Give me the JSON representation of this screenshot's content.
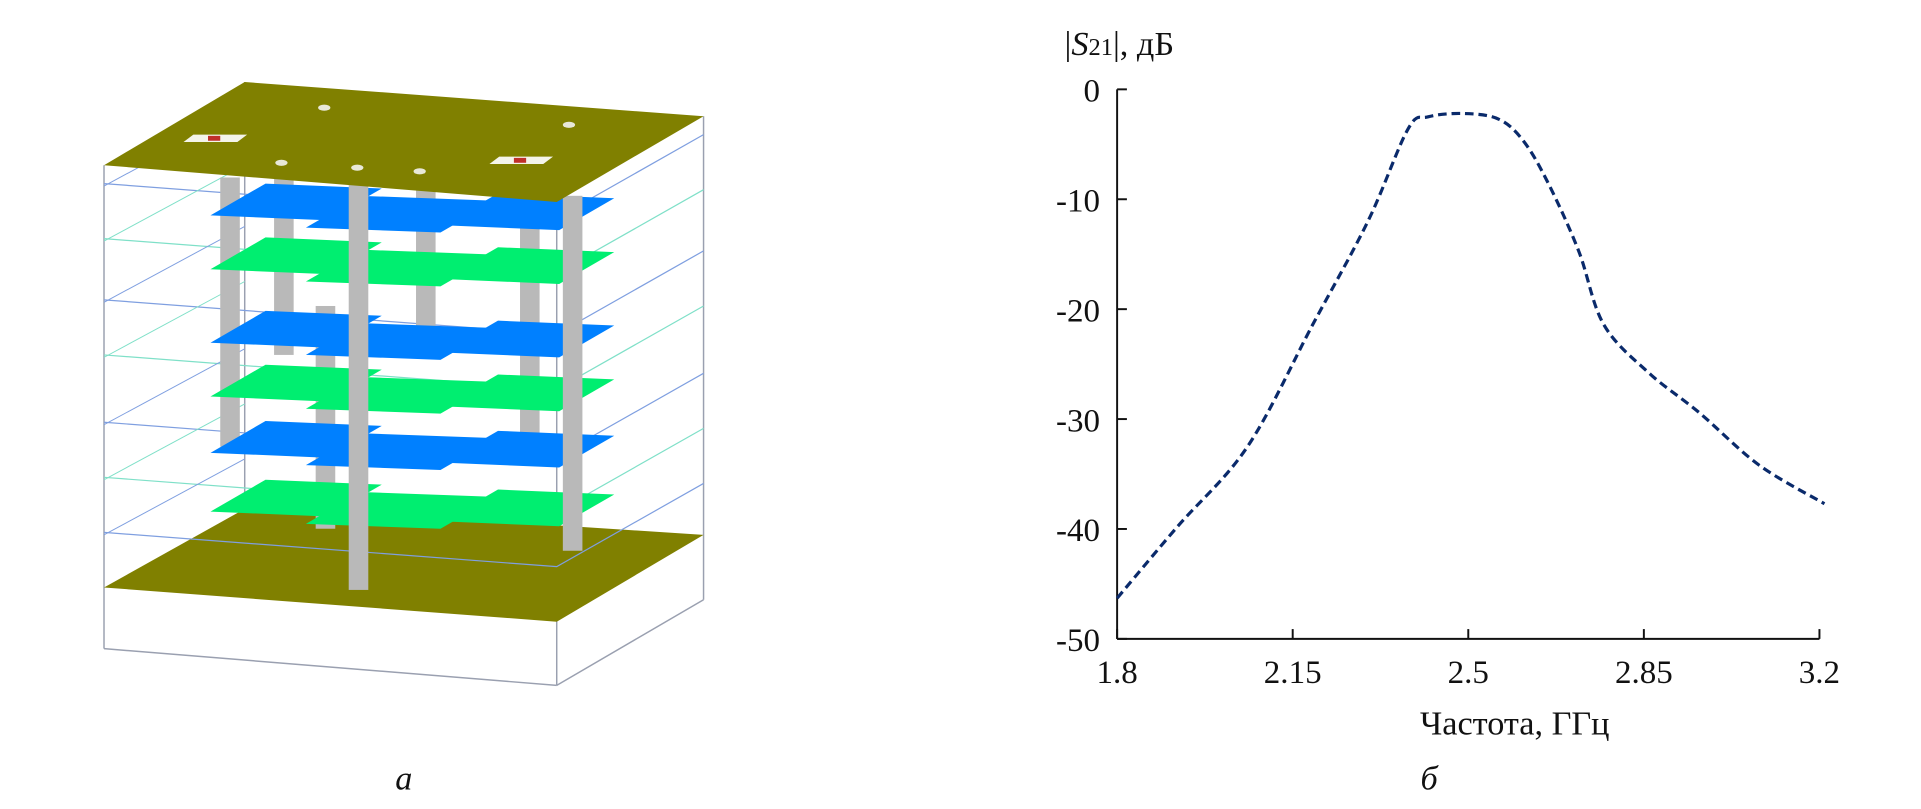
{
  "panels": {
    "left_label": "а",
    "right_label": "б"
  },
  "model": {
    "colors": {
      "ground_plate": "#808000",
      "resonator_blue": "#0080ff",
      "resonator_green": "#00ee70",
      "via_post": "#b9b9b9",
      "wireframe": "#9aa0b0"
    }
  },
  "chart_data": {
    "type": "line",
    "title": "",
    "xlabel": "Частота, ГГц",
    "ylabel": "|S21|, дБ",
    "ylabel_parts": {
      "prefix": "|",
      "symbol": "S",
      "subscript": "21",
      "suffix": "|, дБ"
    },
    "xlim": [
      1.8,
      3.2
    ],
    "ylim": [
      -50,
      0
    ],
    "xticks": [
      "1.8",
      "2.15",
      "2.5",
      "2.85",
      "3.2"
    ],
    "yticks": [
      "0",
      "-10",
      "-20",
      "-30",
      "-40",
      "-50"
    ],
    "grid": false,
    "legend": "none",
    "series": [
      {
        "name": "|S21|",
        "color": "#0a2a6b",
        "style": "dashed",
        "x": [
          1.8,
          1.92,
          2.06,
          2.19,
          2.3,
          2.38,
          2.42,
          2.49,
          2.56,
          2.61,
          2.66,
          2.72,
          2.77,
          2.86,
          2.96,
          3.08,
          3.21
        ],
        "y": [
          -46.3,
          -39.8,
          -32.5,
          -21.4,
          -12.0,
          -3.6,
          -2.5,
          -2.2,
          -2.7,
          -4.7,
          -8.6,
          -14.7,
          -21.4,
          -25.8,
          -29.4,
          -34.2,
          -37.7
        ]
      }
    ]
  }
}
